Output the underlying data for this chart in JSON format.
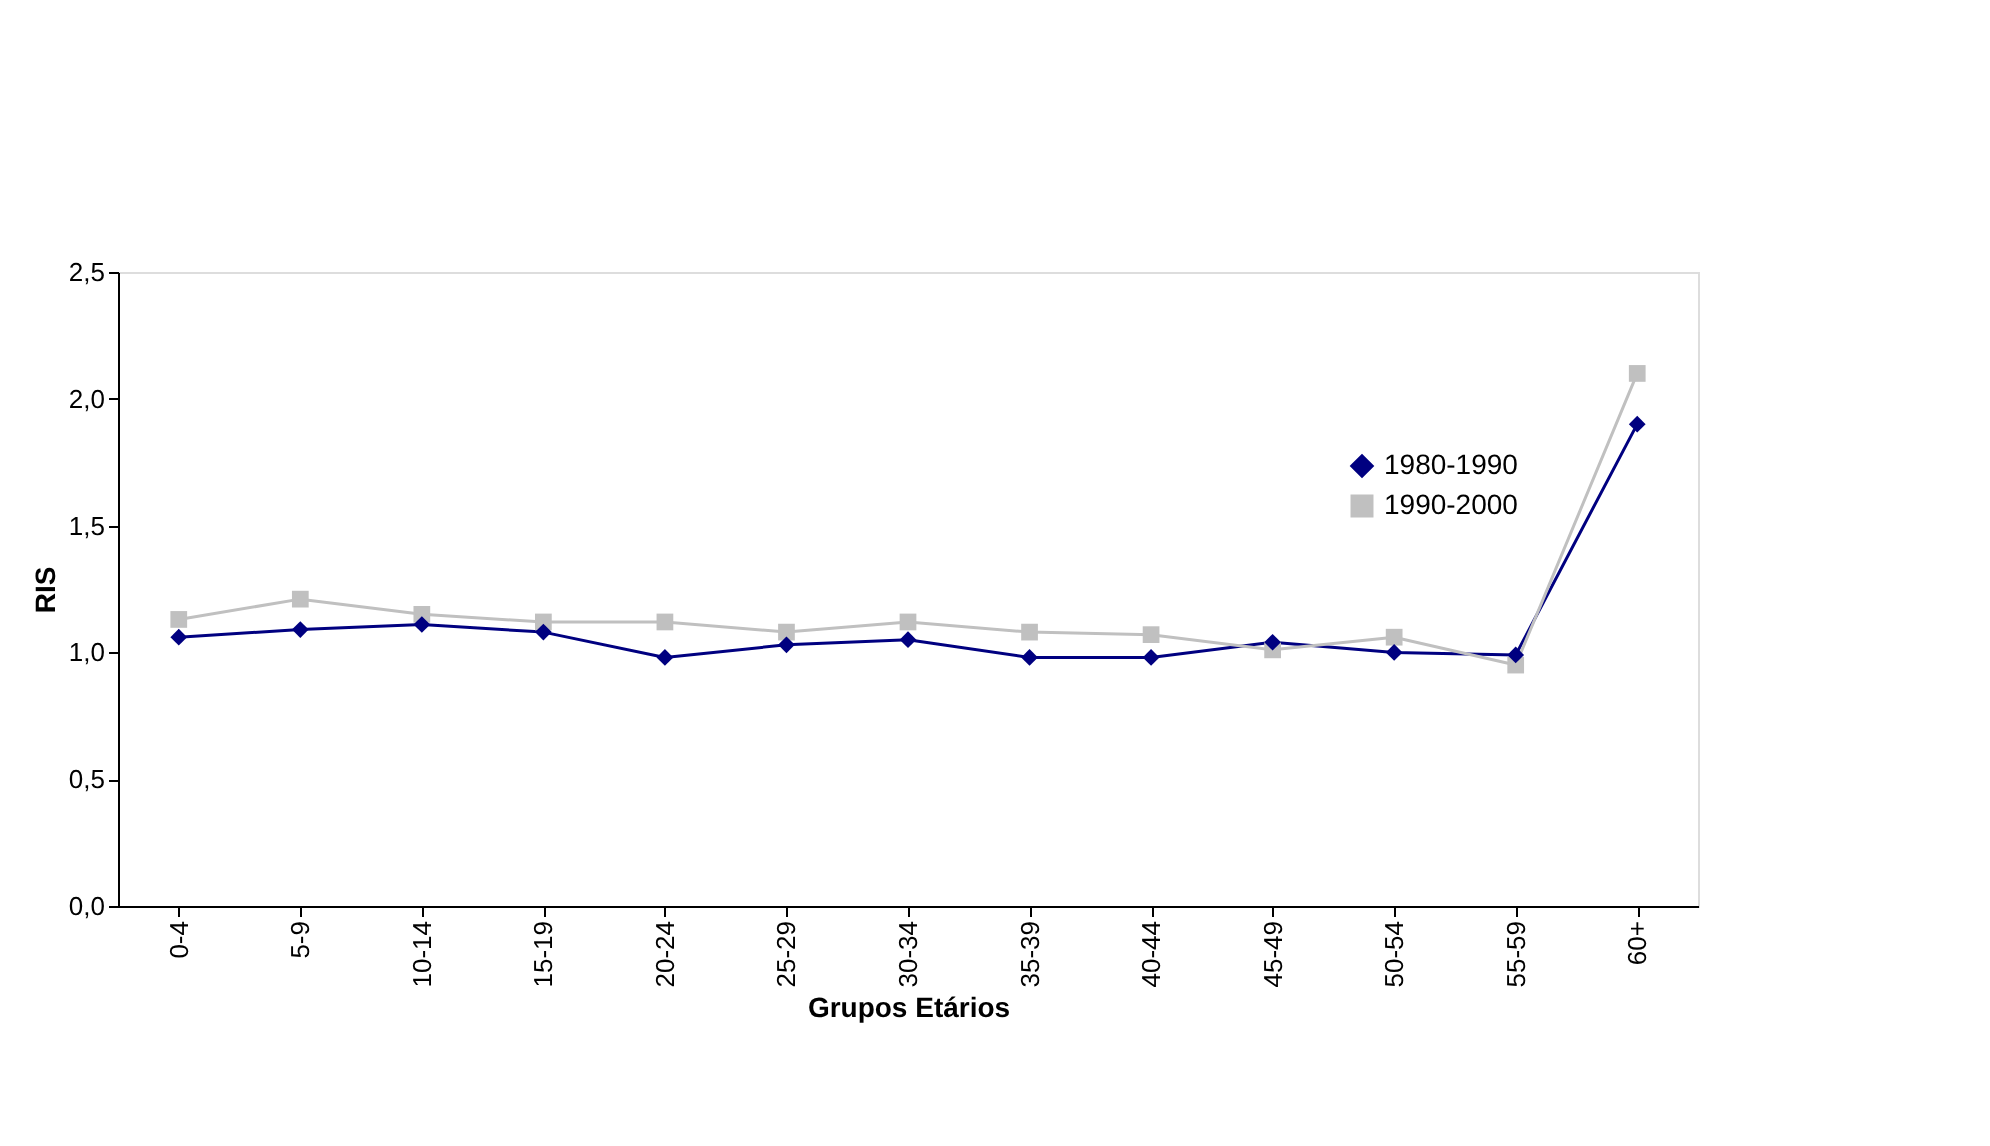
{
  "chart_data": {
    "type": "line",
    "xlabel": "Grupos Etários",
    "ylabel": "RIS",
    "categories": [
      "0-4",
      "5-9",
      "10-14",
      "15-19",
      "20-24",
      "25-29",
      "30-34",
      "35-39",
      "40-44",
      "45-49",
      "50-54",
      "55-59",
      "60+"
    ],
    "series": [
      {
        "name": "1980-1990",
        "color": "#000080",
        "marker": "diamond",
        "values": [
          1.06,
          1.09,
          1.11,
          1.08,
          0.98,
          1.03,
          1.05,
          0.98,
          0.98,
          1.04,
          1.0,
          0.99,
          1.9
        ]
      },
      {
        "name": "1990-2000",
        "color": "#c0c0c0",
        "marker": "square",
        "values": [
          1.13,
          1.21,
          1.15,
          1.12,
          1.12,
          1.08,
          1.12,
          1.08,
          1.07,
          1.01,
          1.06,
          0.95,
          2.1
        ]
      }
    ],
    "ylim": [
      0,
      2.5
    ],
    "yticks": [
      {
        "value": 0,
        "label": "0,0"
      },
      {
        "value": 0.5,
        "label": "0,5"
      },
      {
        "value": 1,
        "label": "1,0"
      },
      {
        "value": 1.5,
        "label": "1,5"
      },
      {
        "value": 2,
        "label": "2,0"
      },
      {
        "value": 2.5,
        "label": "2,5"
      }
    ],
    "grid": false,
    "legend": "top right",
    "line_style": "solid"
  }
}
